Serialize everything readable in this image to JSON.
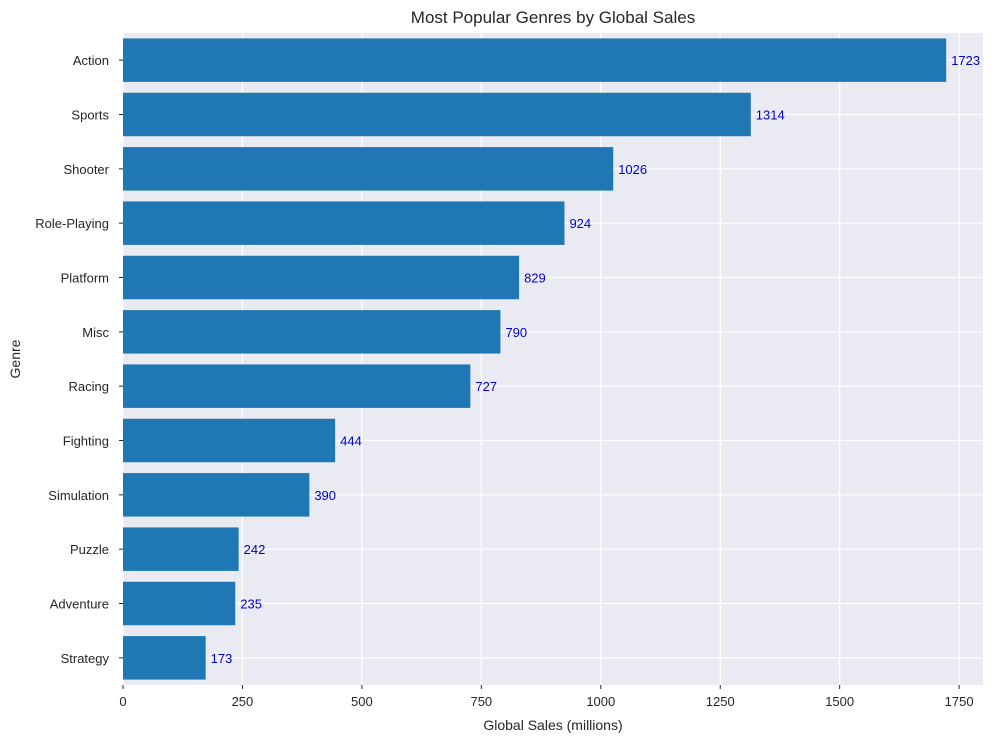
{
  "chart_data": {
    "type": "bar",
    "orientation": "horizontal",
    "title": "Most Popular Genres by Global Sales",
    "xlabel": "Global Sales (millions)",
    "ylabel": "Genre",
    "xlim": [
      0,
      1800
    ],
    "xticks": [
      0,
      250,
      500,
      750,
      1000,
      1250,
      1500,
      1750
    ],
    "grid": true,
    "categories": [
      "Action",
      "Sports",
      "Shooter",
      "Role-Playing",
      "Platform",
      "Misc",
      "Racing",
      "Fighting",
      "Simulation",
      "Puzzle",
      "Adventure",
      "Strategy"
    ],
    "values": [
      1723,
      1314,
      1026,
      924,
      829,
      790,
      727,
      444,
      390,
      242,
      235,
      173
    ],
    "colors": {
      "bar": "#1f77b4",
      "background": "#eaeaf2",
      "data_label": "#0000cc"
    }
  }
}
